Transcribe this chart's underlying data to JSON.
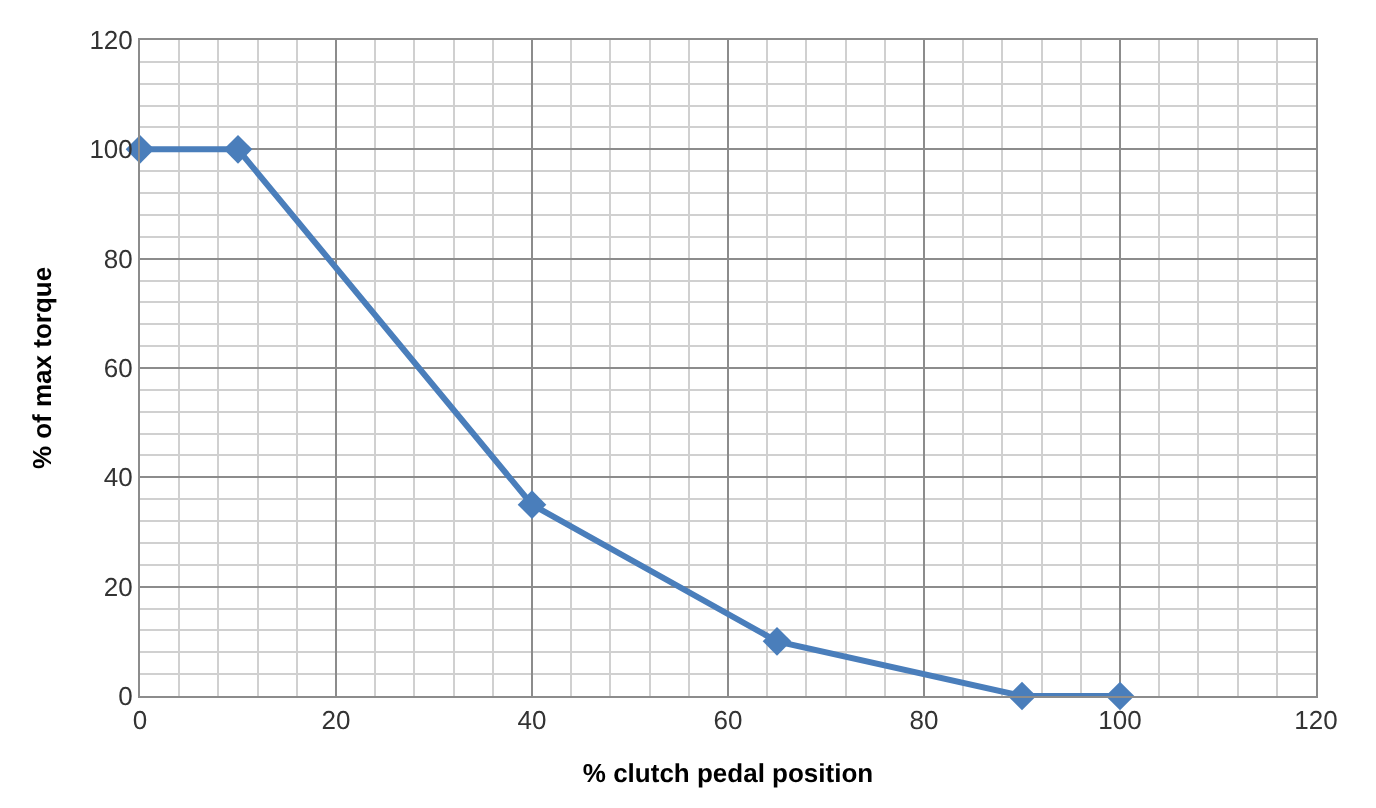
{
  "chart_data": {
    "type": "line",
    "xlabel": "% clutch pedal position",
    "ylabel": "% of max torque",
    "x": [
      0,
      10,
      40,
      65,
      90,
      100
    ],
    "series": [
      {
        "color": "#4a7ebb",
        "values": [
          100,
          100,
          35,
          10,
          0,
          0
        ]
      }
    ],
    "xlim": [
      0,
      120
    ],
    "xticks": [
      0,
      20,
      40,
      60,
      80,
      100,
      120
    ],
    "ylim": [
      0,
      120
    ],
    "yticks": [
      0,
      20,
      40,
      60,
      80,
      100,
      120
    ],
    "grid": true,
    "marker": "diamond",
    "line_style": "solid",
    "legend": false
  }
}
